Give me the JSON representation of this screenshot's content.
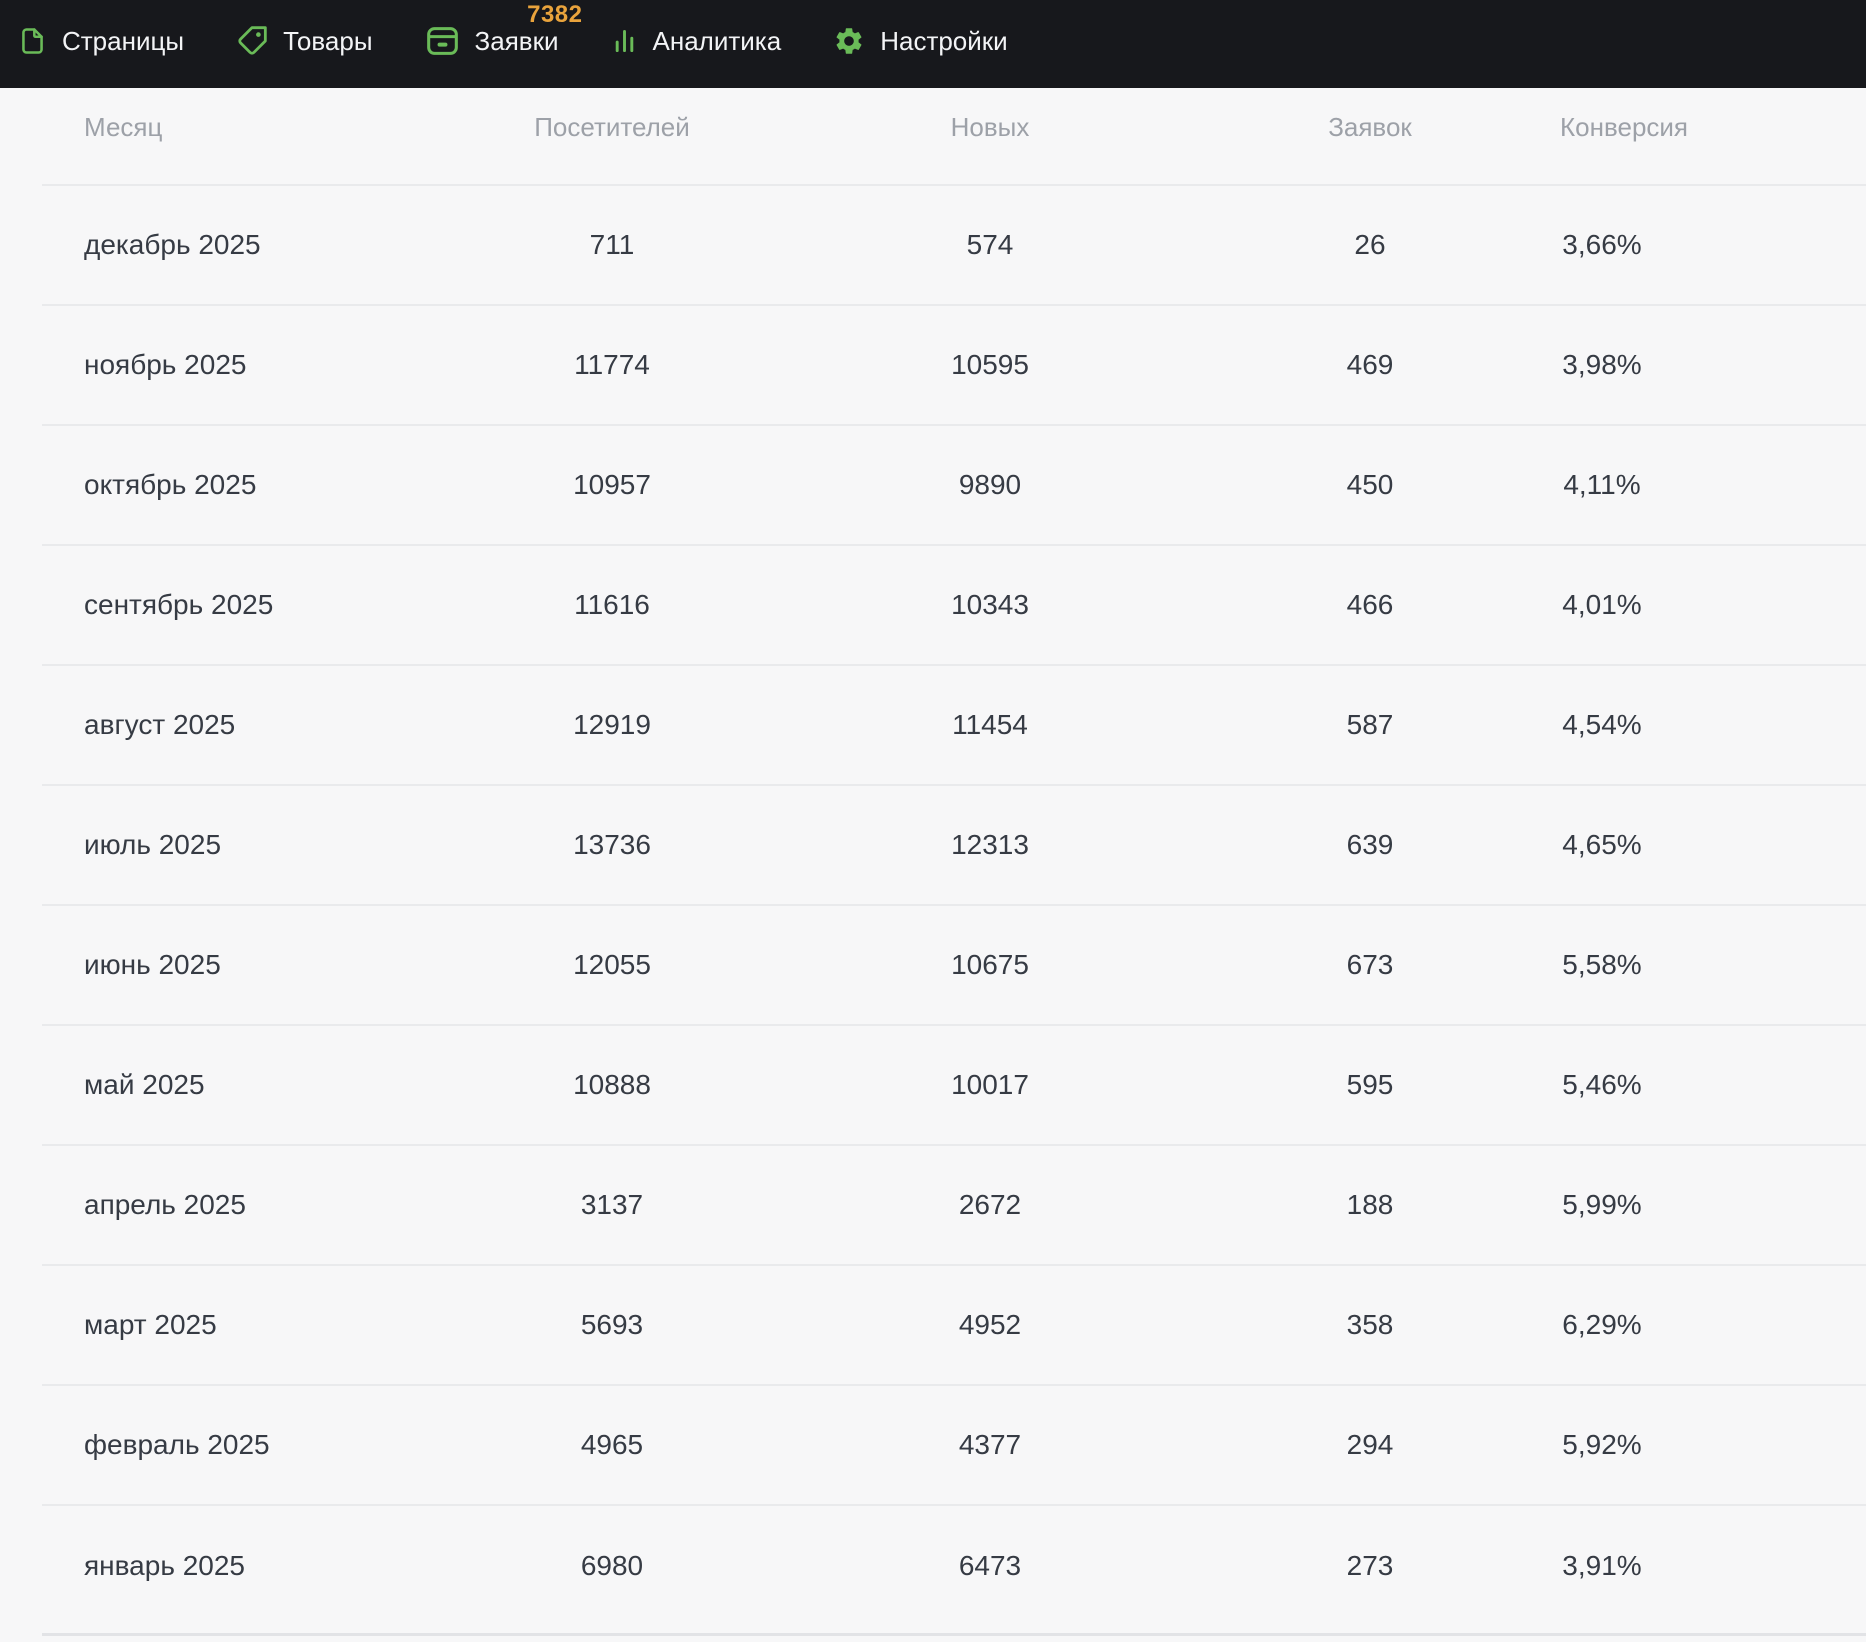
{
  "nav": {
    "icon_color": "#6ABB58",
    "badge_color": "#E9A33C",
    "items": [
      {
        "name": "pages",
        "label": "Страницы",
        "icon": "page-icon"
      },
      {
        "name": "products",
        "label": "Товары",
        "icon": "tag-icon"
      },
      {
        "name": "requests",
        "label": "Заявки",
        "icon": "inbox-icon",
        "badge": "7382"
      },
      {
        "name": "analytics",
        "label": "Аналитика",
        "icon": "bar-chart-icon"
      },
      {
        "name": "settings",
        "label": "Настройки",
        "icon": "gear-icon"
      }
    ]
  },
  "table": {
    "columns": [
      "Месяц",
      "Посетителей",
      "Новых",
      "Заявок",
      "Конверсия"
    ],
    "rows": [
      [
        "декабрь 2025",
        "711",
        "574",
        "26",
        "3,66%"
      ],
      [
        "ноябрь 2025",
        "11774",
        "10595",
        "469",
        "3,98%"
      ],
      [
        "октябрь 2025",
        "10957",
        "9890",
        "450",
        "4,11%"
      ],
      [
        "сентябрь 2025",
        "11616",
        "10343",
        "466",
        "4,01%"
      ],
      [
        "август 2025",
        "12919",
        "11454",
        "587",
        "4,54%"
      ],
      [
        "июль 2025",
        "13736",
        "12313",
        "639",
        "4,65%"
      ],
      [
        "июнь 2025",
        "12055",
        "10675",
        "673",
        "5,58%"
      ],
      [
        "май 2025",
        "10888",
        "10017",
        "595",
        "5,46%"
      ],
      [
        "апрель 2025",
        "3137",
        "2672",
        "188",
        "5,99%"
      ],
      [
        "март 2025",
        "5693",
        "4952",
        "358",
        "6,29%"
      ],
      [
        "февраль 2025",
        "4965",
        "4377",
        "294",
        "5,92%"
      ],
      [
        "январь 2025",
        "6980",
        "6473",
        "273",
        "3,91%"
      ]
    ]
  }
}
